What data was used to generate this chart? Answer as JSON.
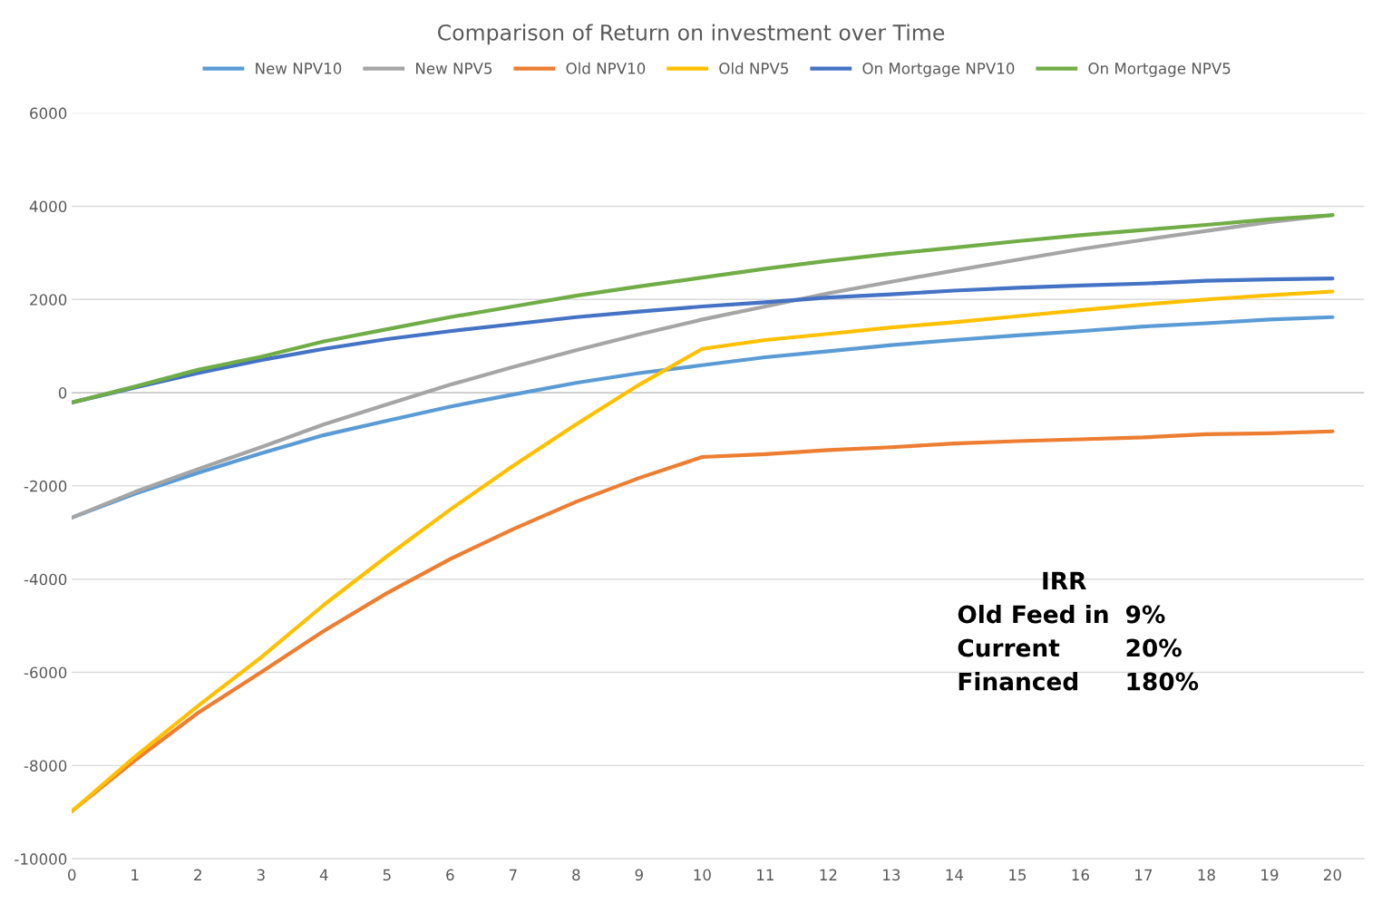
{
  "chart_data": {
    "type": "line",
    "title": "Comparison of Return on investment over Time",
    "categories": [
      "0",
      "1",
      "2",
      "3",
      "4",
      "5",
      "6",
      "7",
      "8",
      "9",
      "10",
      "11",
      "12",
      "13",
      "14",
      "15",
      "16",
      "17",
      "18",
      "19",
      "20"
    ],
    "series": [
      {
        "name": "New NPV10",
        "color": "#5b9bd5",
        "values": [
          -2680,
          -2170,
          -1720,
          -1300,
          -910,
          -600,
          -300,
          -40,
          210,
          420,
          590,
          760,
          890,
          1020,
          1130,
          1230,
          1320,
          1420,
          1490,
          1570,
          1620
        ]
      },
      {
        "name": "New NPV5",
        "color": "#a5a5a5",
        "values": [
          -2680,
          -2130,
          -1640,
          -1170,
          -680,
          -250,
          170,
          550,
          910,
          1250,
          1570,
          1850,
          2130,
          2380,
          2620,
          2850,
          3080,
          3280,
          3470,
          3660,
          3810
        ]
      },
      {
        "name": "Old NPV10",
        "color": "#ed7d31",
        "values": [
          -8980,
          -7890,
          -6870,
          -6000,
          -5110,
          -4300,
          -3570,
          -2930,
          -2340,
          -1830,
          -1380,
          -1320,
          -1230,
          -1170,
          -1090,
          -1040,
          -1000,
          -960,
          -890,
          -870,
          -830
        ]
      },
      {
        "name": "Old NPV5",
        "color": "#ffc000",
        "values": [
          -8980,
          -7810,
          -6720,
          -5680,
          -4550,
          -3510,
          -2510,
          -1570,
          -680,
          170,
          940,
          1130,
          1260,
          1400,
          1510,
          1640,
          1770,
          1890,
          2000,
          2090,
          2170
        ]
      },
      {
        "name": "On Mortgage NPV10",
        "color": "#4472c4",
        "values": [
          -210,
          110,
          420,
          700,
          940,
          1150,
          1320,
          1470,
          1620,
          1740,
          1850,
          1940,
          2040,
          2110,
          2190,
          2250,
          2300,
          2340,
          2400,
          2430,
          2450
        ]
      },
      {
        "name": "On Mortgage NPV5",
        "color": "#70ad47",
        "values": [
          -210,
          130,
          490,
          770,
          1100,
          1360,
          1620,
          1850,
          2080,
          2280,
          2470,
          2660,
          2830,
          2980,
          3110,
          3250,
          3380,
          3490,
          3600,
          3720,
          3810
        ]
      }
    ],
    "ylim": [
      -10000,
      6000
    ],
    "yticks": [
      -10000,
      -8000,
      -6000,
      -4000,
      -2000,
      0,
      2000,
      4000,
      6000
    ],
    "grid": "y",
    "legend": "top",
    "marker": "none",
    "line_style": "solid",
    "annotations": [
      "IRR",
      "Old Feed in",
      "9%",
      "Current",
      "20%",
      "Financed",
      "180%"
    ]
  }
}
